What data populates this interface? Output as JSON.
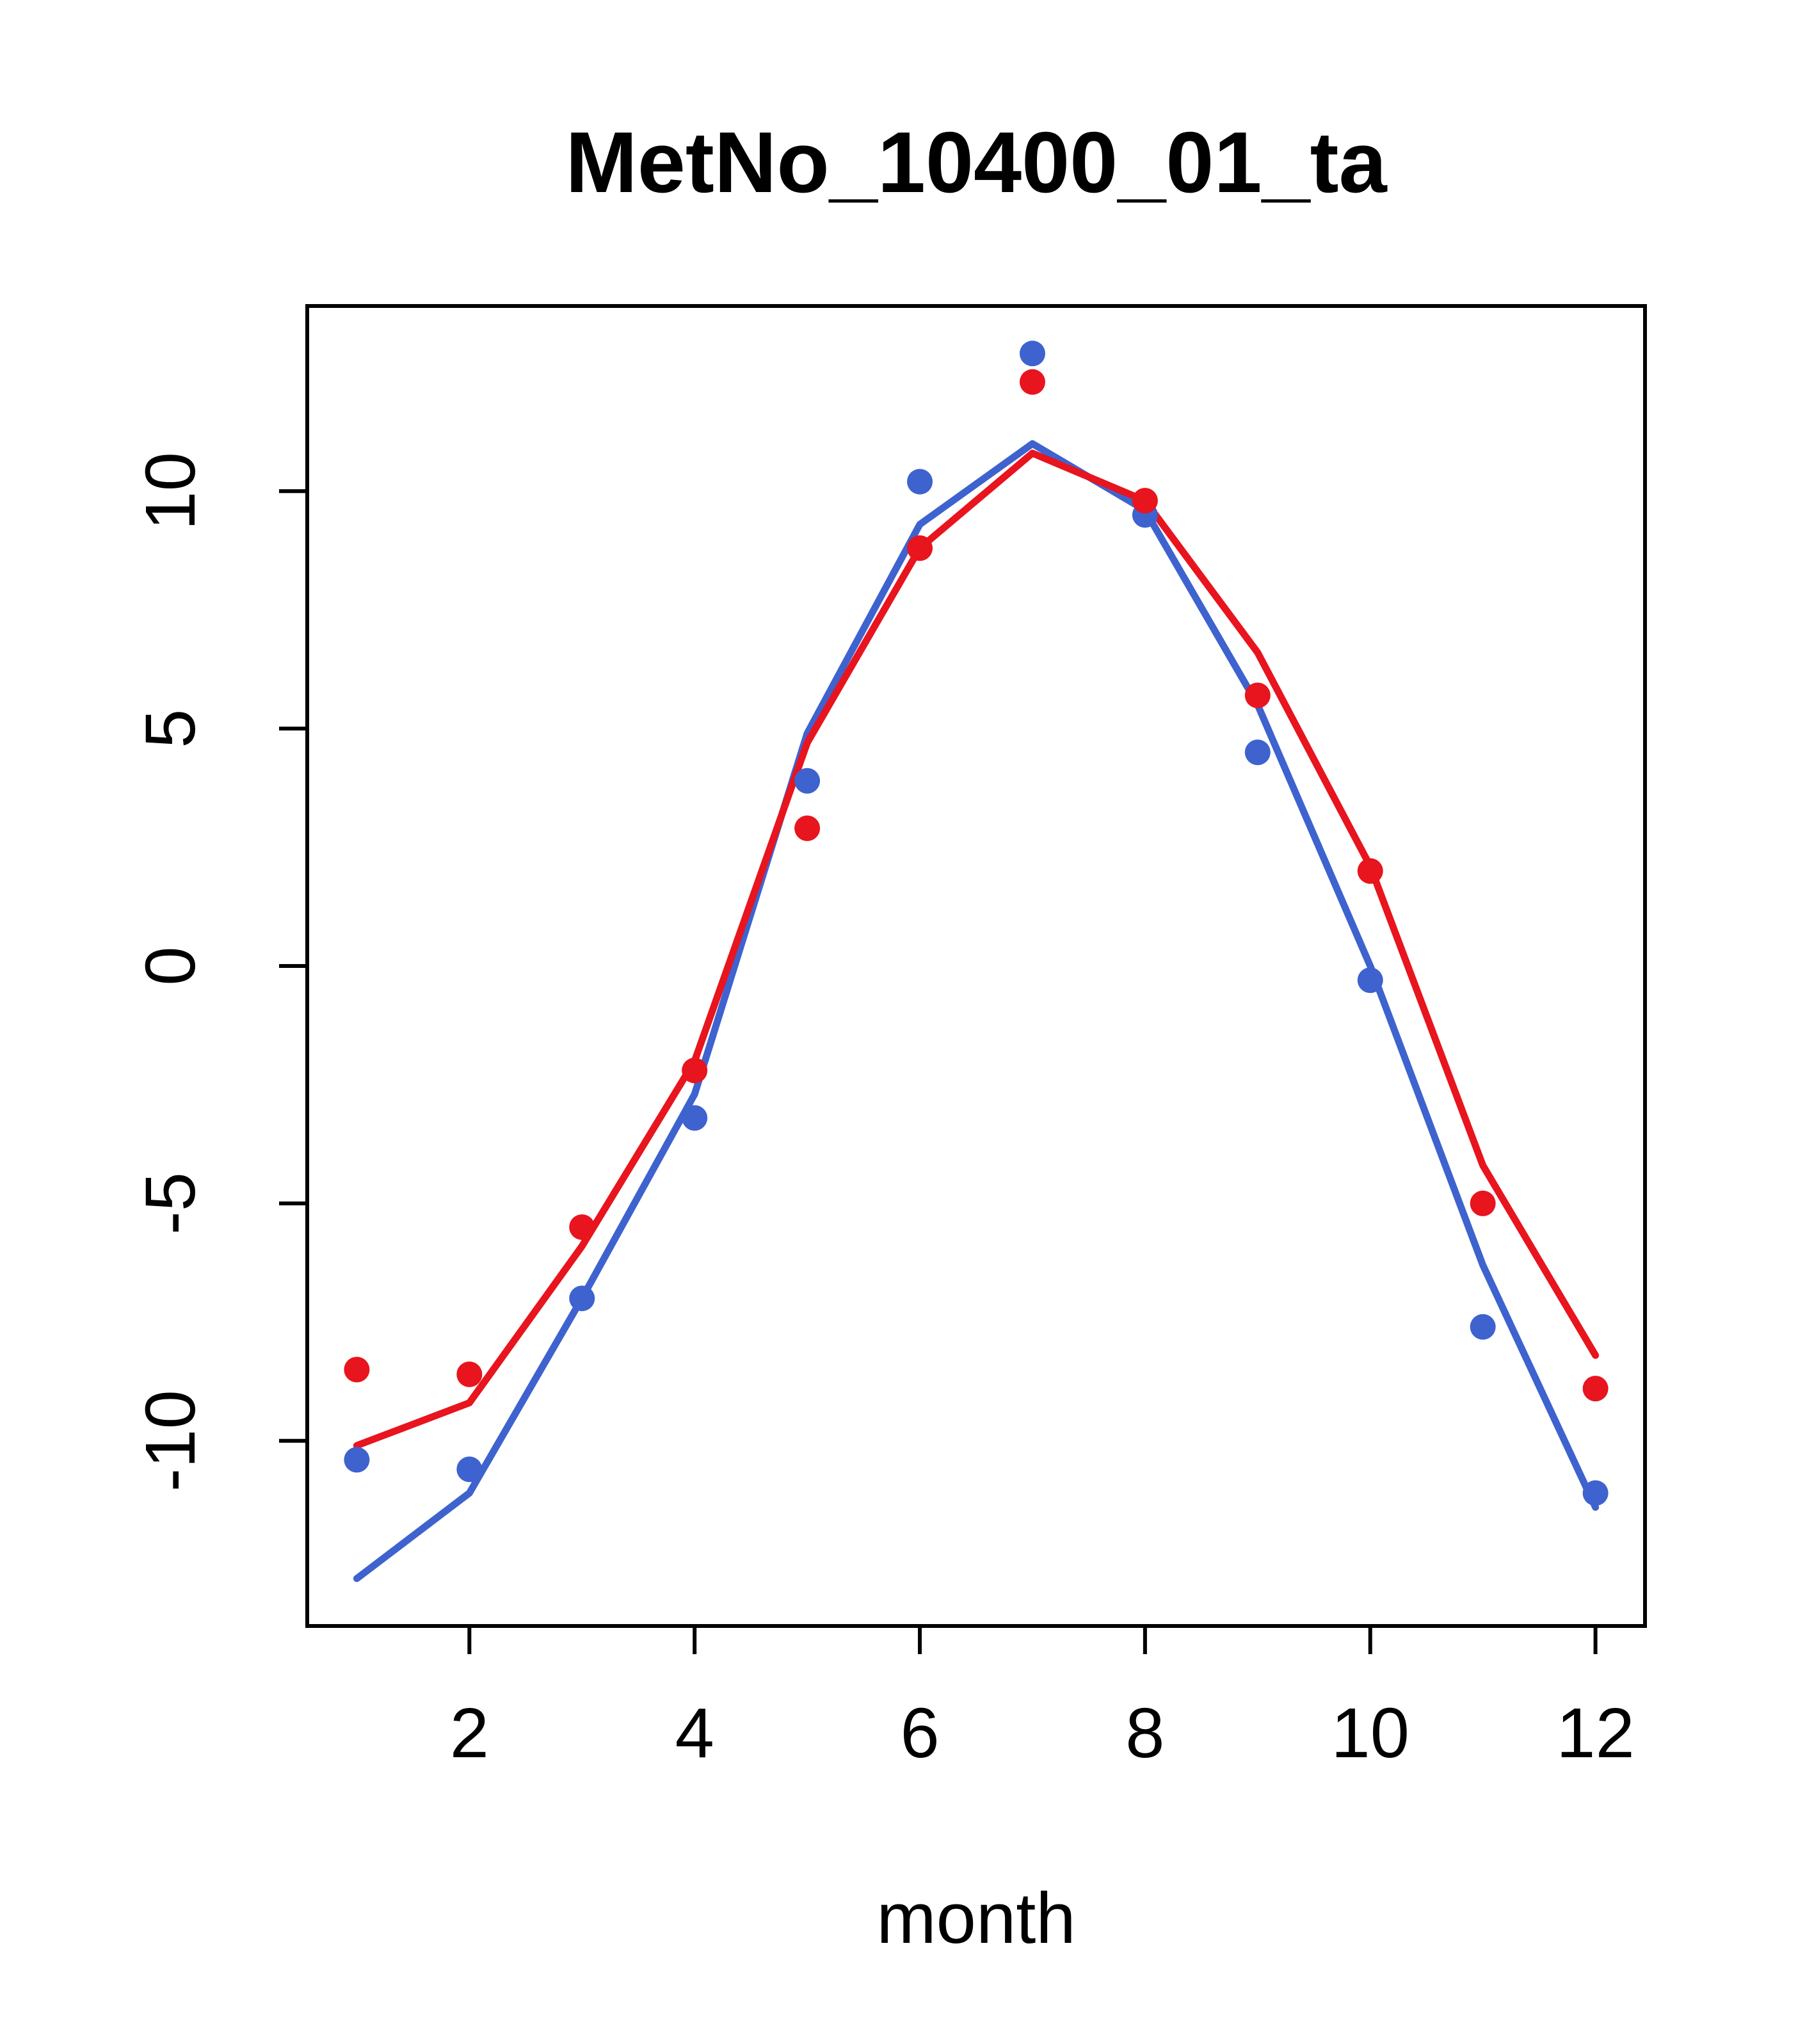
{
  "window": {
    "title": "MetNo_10400_01_ta"
  },
  "chart_data": {
    "type": "line",
    "title": "MetNo_10400_01_ta",
    "xlabel": "month",
    "ylabel": "",
    "x": [
      1,
      2,
      3,
      4,
      5,
      6,
      7,
      8,
      9,
      10,
      11,
      12
    ],
    "xlim": [
      0.56,
      12.44
    ],
    "ylim": [
      -13.9,
      13.9
    ],
    "xticks": [
      2,
      4,
      6,
      8,
      10,
      12
    ],
    "yticks": [
      -10,
      -5,
      0,
      5,
      10
    ],
    "grid": false,
    "legend_position": "none",
    "colors": {
      "blue": "#3E63CF",
      "red": "#E8141E",
      "axis": "#000000",
      "background": "#FFFFFF"
    },
    "series": [
      {
        "name": "blue-line",
        "style": "line",
        "color": "#3E63CF",
        "values": [
          -12.9,
          -11.1,
          -7.0,
          -2.7,
          4.9,
          9.3,
          11.0,
          9.6,
          5.5,
          0.0,
          -6.3,
          -11.4
        ]
      },
      {
        "name": "red-line",
        "style": "line",
        "color": "#E8141E",
        "values": [
          -10.1,
          -9.2,
          -5.9,
          -2.0,
          4.7,
          8.8,
          10.8,
          9.8,
          6.6,
          2.1,
          -4.2,
          -8.2
        ]
      },
      {
        "name": "blue-points",
        "style": "points",
        "color": "#3E63CF",
        "values": [
          -10.4,
          -10.6,
          -7.0,
          -3.2,
          3.9,
          10.2,
          12.9,
          9.5,
          4.5,
          -0.3,
          -7.6,
          -11.1
        ]
      },
      {
        "name": "red-points",
        "style": "points",
        "color": "#E8141E",
        "values": [
          -8.5,
          -8.6,
          -5.5,
          -2.2,
          2.9,
          8.8,
          12.3,
          9.8,
          5.7,
          2.0,
          -5.0,
          -8.9
        ]
      }
    ]
  }
}
